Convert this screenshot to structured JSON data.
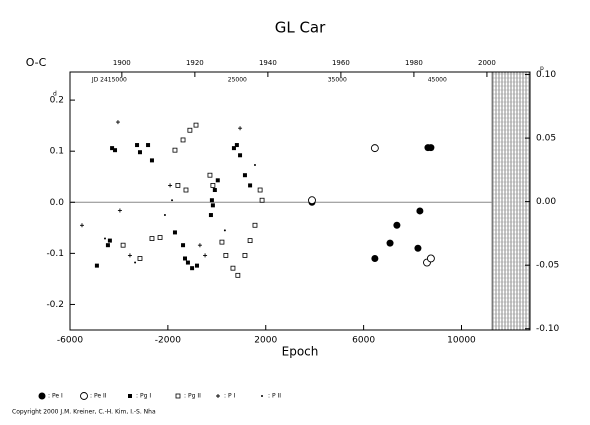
{
  "chart_data": {
    "type": "scatter",
    "title": "GL Car",
    "xlabel": "Epoch",
    "ylabel": "O-C",
    "y_unit": "d",
    "y2_unit": "p",
    "xlim": [
      -6000,
      12800
    ],
    "xticks": [
      -6000,
      -2000,
      2000,
      6000,
      10000
    ],
    "ylim": [
      -0.25,
      0.255
    ],
    "yticks": [
      -0.2,
      -0.1,
      {
        "value": 0,
        "label": "0.0"
      },
      0.1,
      0.2
    ],
    "y2lim": [
      -0.101,
      0.102
    ],
    "y2ticks": [
      {
        "value": -0.1,
        "label": "-0.10"
      },
      {
        "value": -0.05,
        "label": "-0.05"
      },
      {
        "value": 0,
        "label": "0.00"
      },
      {
        "value": 0.05,
        "label": "0.05"
      },
      {
        "value": 0.1,
        "label": "0.10"
      }
    ],
    "x2lim": [
      1885.8,
      2011.8
    ],
    "x2ticks": [
      1900,
      1920,
      1940,
      1960,
      1980,
      2000
    ],
    "jdlim": [
      2409814,
      2455835
    ],
    "jdticks": [
      {
        "value": 2415000,
        "label": "JD 2415000"
      },
      {
        "value": 2425000,
        "label": "25000"
      },
      {
        "value": 2435000,
        "label": "35000"
      },
      {
        "value": 2445000,
        "label": "45000"
      }
    ],
    "future_from": 2001.4,
    "zero_line": true,
    "series": [
      {
        "name": "Pe I",
        "marker": "circle-filled",
        "color": "#000000",
        "x": [
          3890,
          6460,
          7080,
          7360,
          8300,
          8630,
          8750,
          8220
        ],
        "values": [
          0.0,
          -0.11,
          -0.08,
          -0.045,
          -0.017,
          0.107,
          0.107,
          -0.09
        ]
      },
      {
        "name": "Pe II",
        "marker": "circle-open",
        "color": "#000000",
        "x": [
          3890,
          6460,
          8590,
          8750
        ],
        "values": [
          0.004,
          0.106,
          -0.118,
          -0.11
        ]
      },
      {
        "name": "Pg I",
        "marker": "square-filled",
        "color": "#000000",
        "x": [
          -4900,
          -4450,
          -4370,
          -4280,
          -4160,
          -3260,
          -3140,
          -2810,
          -2650,
          -1710,
          -1380,
          -1300,
          -1180,
          -1010,
          -810,
          -240,
          -200,
          -160,
          -80,
          40,
          700,
          820,
          950,
          1150,
          1360
        ],
        "values": [
          -0.124,
          -0.084,
          -0.075,
          0.106,
          0.102,
          0.112,
          0.098,
          0.112,
          0.082,
          -0.059,
          -0.084,
          -0.11,
          -0.118,
          -0.129,
          -0.124,
          -0.025,
          0.004,
          -0.006,
          0.024,
          0.043,
          0.106,
          0.112,
          0.092,
          0.053,
          0.033
        ]
      },
      {
        "name": "Pg II",
        "marker": "square-open",
        "color": "#000000",
        "x": [
          -3830,
          -3140,
          -2650,
          -2320,
          -1710,
          -1380,
          -1100,
          -850,
          -280,
          -160,
          210,
          370,
          660,
          860,
          1150,
          1360,
          1560,
          1770,
          1850,
          -1590,
          -1260
        ],
        "values": [
          -0.084,
          -0.11,
          -0.071,
          -0.069,
          0.102,
          0.122,
          0.141,
          0.151,
          0.053,
          0.033,
          -0.078,
          -0.104,
          -0.129,
          -0.143,
          -0.104,
          -0.075,
          -0.045,
          0.024,
          0.004,
          0.033,
          0.024
        ]
      },
      {
        "name": "P I",
        "marker": "plus",
        "color": "#000000",
        "x": [
          -5510,
          -4040,
          -3960,
          -3550,
          -1910,
          -480,
          950,
          -690
        ],
        "values": [
          -0.045,
          0.157,
          -0.016,
          -0.104,
          0.033,
          -0.104,
          0.145,
          -0.084
        ]
      },
      {
        "name": "P II",
        "marker": "dot",
        "color": "#000000",
        "x": [
          -4570,
          -3340,
          -2120,
          -1830,
          330,
          1560
        ],
        "values": [
          -0.071,
          -0.118,
          -0.025,
          0.004,
          -0.055,
          0.073
        ]
      }
    ],
    "legend_prefix": ":",
    "copyright": "Copyright 2000 J.M. Kreiner, C.-H. Kim, I.-S. Nha"
  }
}
